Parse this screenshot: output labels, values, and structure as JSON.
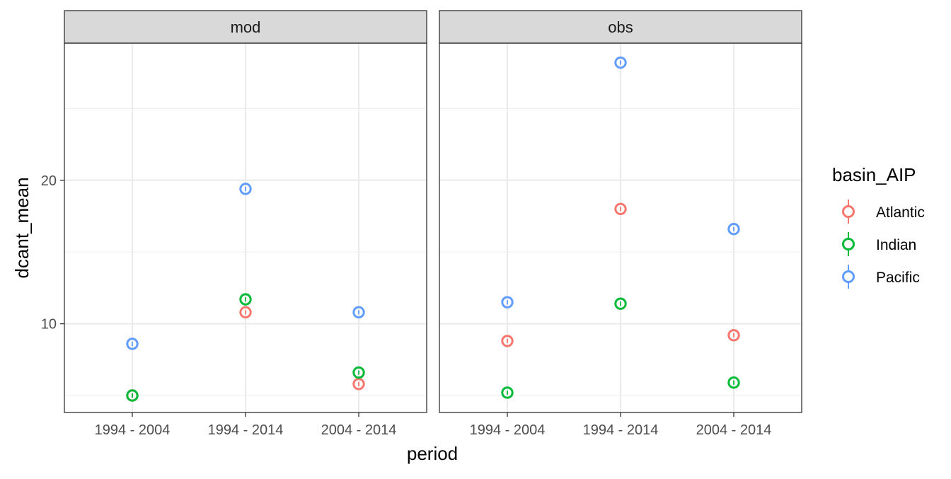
{
  "chart_data": {
    "type": "scatter",
    "xlabel": "period",
    "ylabel": "dcant_mean",
    "categories": [
      "1994 - 2004",
      "1994 - 2014",
      "2004 - 2014"
    ],
    "y_ticks": [
      10,
      20
    ],
    "y_tick_labels": [
      "10",
      "20"
    ],
    "ylim": [
      4.2,
      30.0
    ],
    "grid": true,
    "legend": {
      "title": "basin_AIP",
      "position": "right",
      "entries": [
        "Atlantic",
        "Indian",
        "Pacific"
      ]
    },
    "colors": {
      "Atlantic": "#F8766D",
      "Indian": "#00BA38",
      "Pacific": "#619CFF"
    },
    "panels": [
      {
        "strip": "mod",
        "series": [
          {
            "name": "Atlantic",
            "values": [
              5.0,
              10.8,
              5.8
            ]
          },
          {
            "name": "Indian",
            "values": [
              5.0,
              11.7,
              6.6
            ]
          },
          {
            "name": "Pacific",
            "values": [
              8.6,
              19.4,
              10.8
            ]
          }
        ]
      },
      {
        "strip": "obs",
        "series": [
          {
            "name": "Atlantic",
            "values": [
              8.8,
              18.0,
              9.2
            ]
          },
          {
            "name": "Indian",
            "values": [
              5.2,
              11.4,
              5.9
            ]
          },
          {
            "name": "Pacific",
            "values": [
              11.5,
              28.2,
              16.6
            ]
          }
        ]
      }
    ]
  }
}
